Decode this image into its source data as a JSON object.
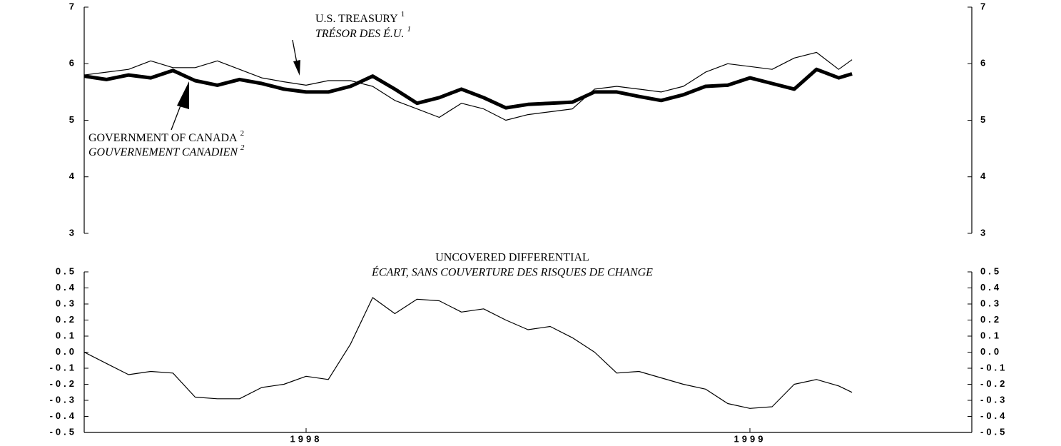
{
  "chart_data": [
    {
      "type": "line",
      "annotations": [
        {
          "text": "U.S. TREASURY",
          "note": "1"
        },
        {
          "text": "TRÉSOR DES É.U.",
          "note": "1"
        },
        {
          "text": "GOVERNMENT OF CANADA",
          "note": "2"
        },
        {
          "text": "GOUVERNEMENT CANADIEN",
          "note": "2"
        }
      ],
      "x": [
        1997.5,
        1997.55,
        1997.6,
        1997.65,
        1997.7,
        1997.75,
        1997.8,
        1997.85,
        1997.9,
        1997.95,
        1998.0,
        1998.05,
        1998.1,
        1998.15,
        1998.2,
        1998.25,
        1998.3,
        1998.35,
        1998.4,
        1998.45,
        1998.5,
        1998.55,
        1998.6,
        1998.65,
        1998.7,
        1998.75,
        1998.8,
        1998.85,
        1998.9,
        1998.95,
        1999.0,
        1999.05,
        1999.1,
        1999.15,
        1999.2,
        1999.23
      ],
      "series": [
        {
          "name": "U.S. TREASURY",
          "color": "#000000",
          "values": [
            5.8,
            5.85,
            5.9,
            6.05,
            5.93,
            5.93,
            6.05,
            5.9,
            5.75,
            5.68,
            5.62,
            5.7,
            5.7,
            5.6,
            5.35,
            5.2,
            5.05,
            5.3,
            5.2,
            5.0,
            5.1,
            5.15,
            5.2,
            5.55,
            5.6,
            5.55,
            5.5,
            5.6,
            5.85,
            6.0,
            5.95,
            5.9,
            6.1,
            6.2,
            5.9,
            6.07
          ]
        },
        {
          "name": "GOVERNMENT OF CANADA",
          "color": "#000000",
          "values": [
            5.78,
            5.72,
            5.8,
            5.75,
            5.88,
            5.7,
            5.62,
            5.72,
            5.65,
            5.55,
            5.5,
            5.5,
            5.6,
            5.78,
            5.55,
            5.3,
            5.4,
            5.55,
            5.4,
            5.22,
            5.28,
            5.3,
            5.32,
            5.5,
            5.5,
            5.42,
            5.35,
            5.45,
            5.6,
            5.62,
            5.75,
            5.65,
            5.55,
            5.9,
            5.75,
            5.82
          ]
        }
      ],
      "xlim": [
        1997.5,
        1999.5
      ],
      "ylim": [
        3,
        7
      ],
      "yticks": [
        3,
        4,
        5,
        6,
        7
      ]
    },
    {
      "type": "line",
      "title": "UNCOVERED DIFFERENTIAL",
      "subtitle": "ÉCART, SANS COUVERTURE DES RISQUES DE CHANGE",
      "x": [
        1997.5,
        1997.55,
        1997.6,
        1997.65,
        1997.7,
        1997.75,
        1997.8,
        1997.85,
        1997.9,
        1997.95,
        1998.0,
        1998.05,
        1998.1,
        1998.15,
        1998.2,
        1998.25,
        1998.3,
        1998.35,
        1998.4,
        1998.45,
        1998.5,
        1998.55,
        1998.6,
        1998.65,
        1998.7,
        1998.75,
        1998.8,
        1998.85,
        1998.9,
        1998.95,
        1999.0,
        1999.05,
        1999.1,
        1999.15,
        1999.2,
        1999.23
      ],
      "values": [
        0.0,
        -0.07,
        -0.14,
        -0.12,
        -0.13,
        -0.28,
        -0.29,
        -0.29,
        -0.22,
        -0.2,
        -0.15,
        -0.17,
        0.05,
        0.34,
        0.24,
        0.33,
        0.32,
        0.25,
        0.27,
        0.2,
        0.14,
        0.16,
        0.09,
        0.0,
        -0.13,
        -0.12,
        -0.16,
        -0.2,
        -0.23,
        -0.32,
        -0.35,
        -0.34,
        -0.2,
        -0.17,
        -0.21,
        -0.25
      ],
      "color": "#000000",
      "xlim": [
        1997.5,
        1999.5
      ],
      "xticks": [
        1998,
        1999
      ],
      "ylim": [
        -0.5,
        0.5
      ],
      "yticks": [
        -0.5,
        -0.4,
        -0.3,
        -0.2,
        -0.1,
        {
          "value": 0,
          "label": "0.0"
        },
        0.1,
        0.2,
        0.3,
        0.4,
        0.5
      ]
    }
  ]
}
